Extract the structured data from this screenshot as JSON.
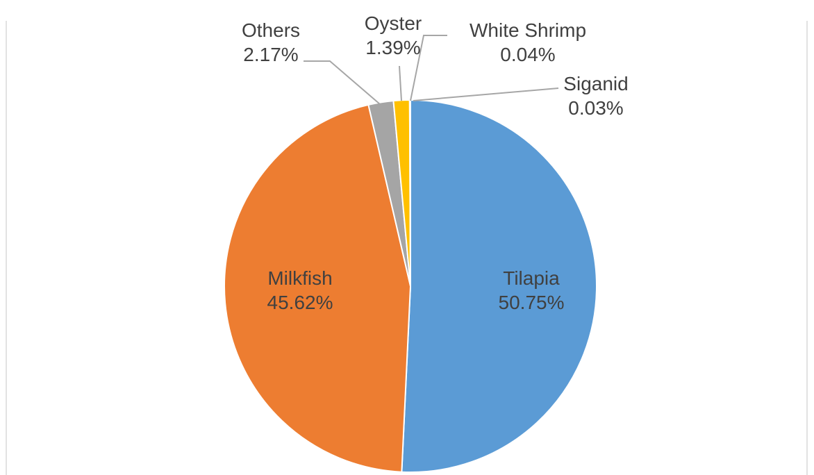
{
  "chart_data": {
    "type": "pie",
    "categories": [
      "Tilapia",
      "Milkfish",
      "Others",
      "Oyster",
      "White Shrimp",
      "Siganid"
    ],
    "values": [
      50.75,
      45.62,
      2.17,
      1.39,
      0.04,
      0.03
    ],
    "value_labels": [
      "50.75%",
      "45.62%",
      "2.17%",
      "1.39%",
      "0.04%",
      "0.03%"
    ],
    "colors": [
      "#5B9BD5",
      "#ED7D31",
      "#A5A5A5",
      "#FFC000",
      "#4472C4",
      "#70AD47"
    ],
    "start_angle_deg": 0,
    "direction": "clockwise",
    "legend": "none",
    "label_color": "#404040"
  }
}
